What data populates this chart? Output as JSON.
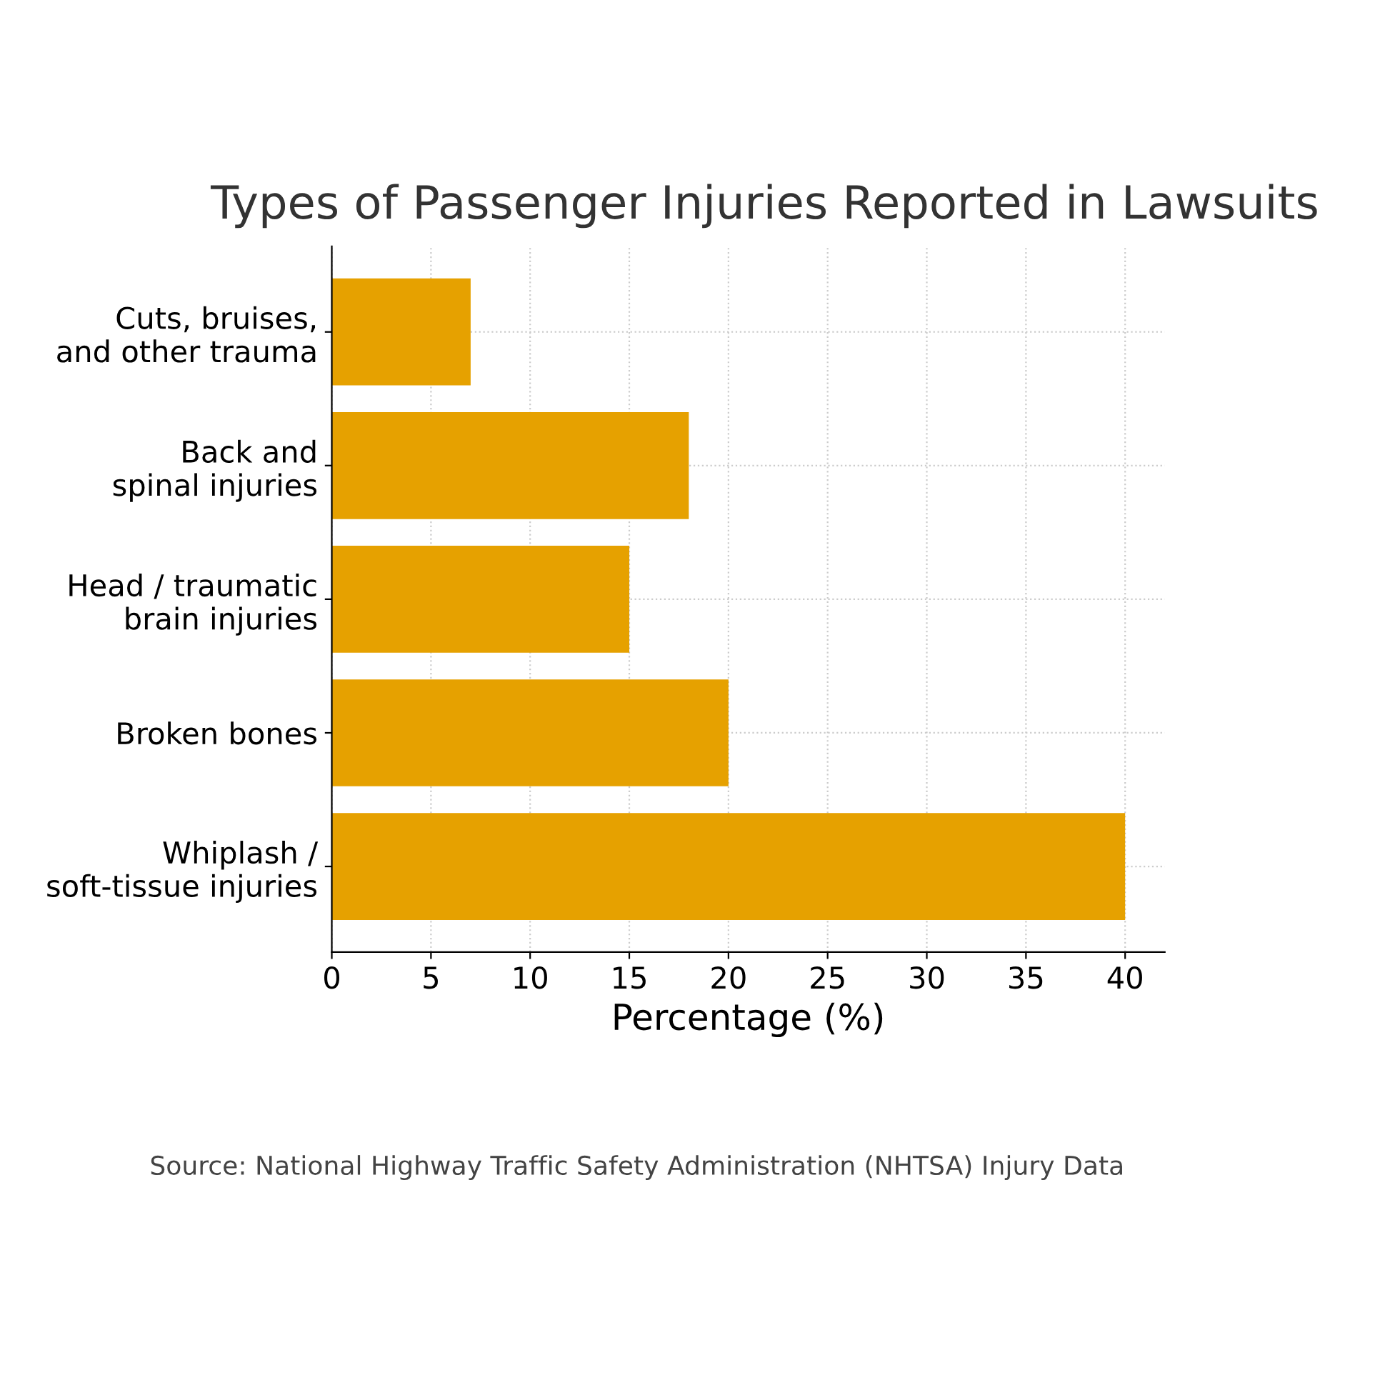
{
  "chart_data": {
    "type": "bar",
    "orientation": "horizontal",
    "title": "Types of Passenger Injuries Reported in Lawsuits",
    "xlabel": "Percentage (%)",
    "categories": [
      "Cuts, bruises,\nand other trauma",
      "Back and\nspinal injuries",
      "Head / traumatic\nbrain injuries",
      "Broken bones",
      "Whiplash /\nsoft-tissue injuries"
    ],
    "values": [
      7,
      18,
      15,
      20,
      40
    ],
    "color": "#e6a100",
    "xlim": [
      0,
      42
    ],
    "xticks": [
      0,
      5,
      10,
      15,
      20,
      25,
      30,
      35,
      40
    ],
    "grid": true,
    "annotations": [
      "Source: National Highway Traffic Safety Administration (NHTSA) Injury Data"
    ]
  }
}
